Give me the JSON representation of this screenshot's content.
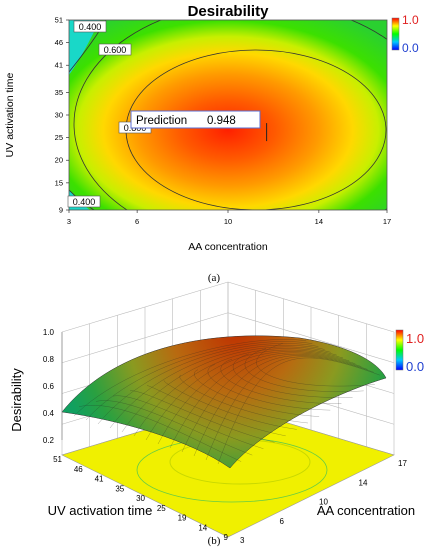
{
  "chart_data": [
    {
      "type": "heatmap",
      "title": "Desirability",
      "xlabel": "AA concentration",
      "ylabel": "UV activation time",
      "xlim": [
        3,
        17
      ],
      "ylim": [
        9,
        51
      ],
      "x_ticks": [
        "3",
        "6",
        "10",
        "14",
        "17"
      ],
      "y_ticks": [
        "9",
        "15",
        "20",
        "25",
        "30",
        "35",
        "41",
        "46",
        "51"
      ],
      "contour_labels": [
        "0.400",
        "0.600",
        "0.800",
        "0.400"
      ],
      "prediction_label": "Prediction",
      "prediction_value": "0.948",
      "prediction_point": {
        "x": 11.7,
        "y": 26
      },
      "colorbar": {
        "max": "1.0",
        "min": "0.0"
      },
      "caption": "(a)"
    },
    {
      "type": "surface",
      "zlabel": "Desirability",
      "xlabel": "AA concentration",
      "ylabel": "UV activation time",
      "z_ticks": [
        "1.0",
        "0.8",
        "0.6",
        "0.4",
        "0.2"
      ],
      "x_ticks": [
        "3",
        "6",
        "10",
        "14",
        "17"
      ],
      "y_ticks": [
        "51",
        "46",
        "41",
        "35",
        "30",
        "25",
        "19",
        "14",
        "9"
      ],
      "colorbar": {
        "max": "1.0",
        "min": "0.0"
      },
      "caption": "(b)"
    }
  ]
}
